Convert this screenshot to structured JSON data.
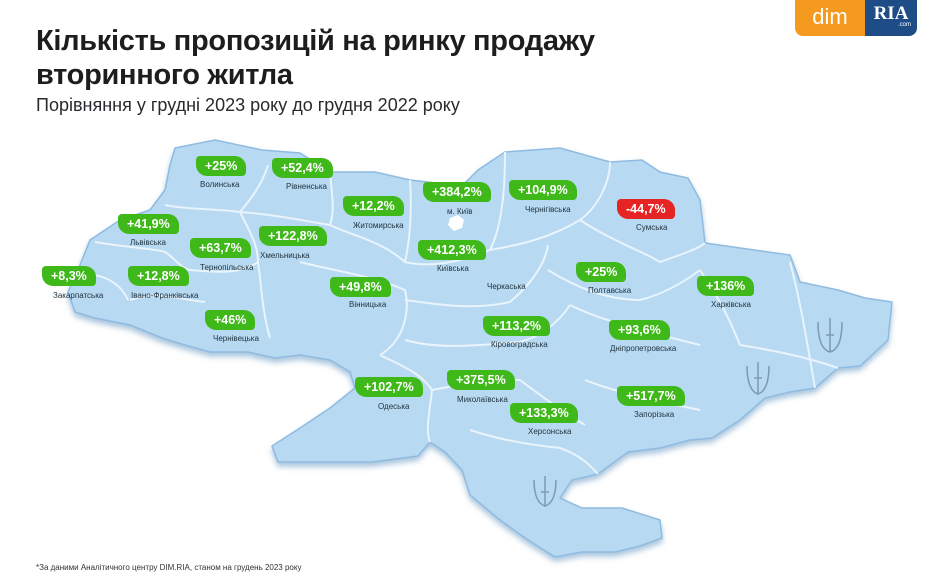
{
  "title": "Кількість пропозицій на ринку продажу вторинного житла",
  "subtitle": "Порівняння у грудні 2023 року до грудня 2022 року",
  "logo": {
    "dim": "dim",
    "ria": "RIA",
    "ria_suffix": ".com"
  },
  "footnote": "*За даними Аналітичного центру DIM.RIA, станом на грудень 2023 року",
  "colors": {
    "map_fill": "#b7d9f2",
    "map_edge": "#8fbbe0",
    "positive": "#3fb81a",
    "negative": "#e62424",
    "dim_brand": "#f39a1f",
    "ria_brand": "#1d4c86"
  },
  "regions": [
    {
      "id": "volynska",
      "name": "Волинська",
      "value": "+25%"
    },
    {
      "id": "rivnenska",
      "name": "Рівненська",
      "value": "+52,4%"
    },
    {
      "id": "lvivska",
      "name": "Львівська",
      "value": "+41,9%"
    },
    {
      "id": "ternopilska",
      "name": "Тернопільська",
      "value": "+63,7%"
    },
    {
      "id": "khmelnytska",
      "name": "Хмельницька",
      "value": "+122,8%"
    },
    {
      "id": "zhytomyrska",
      "name": "Житомирська",
      "value": "+12,2%"
    },
    {
      "id": "kyiv_city",
      "name": "м. Київ",
      "value": "+384,2%"
    },
    {
      "id": "kyivska",
      "name": "Київська",
      "value": "+412,3%"
    },
    {
      "id": "chernihivska",
      "name": "Чернігівська",
      "value": "+104,9%"
    },
    {
      "id": "sumska",
      "name": "Сумська",
      "value": "-44,7%"
    },
    {
      "id": "zakarpatska",
      "name": "Закарпатська",
      "value": "+8,3%"
    },
    {
      "id": "ivano_frankivska",
      "name": "Івано-Франківська",
      "value": "+12,8%"
    },
    {
      "id": "chernivetska",
      "name": "Чернівецька",
      "value": "+46%"
    },
    {
      "id": "vinnytska",
      "name": "Вінницька",
      "value": "+49,8%"
    },
    {
      "id": "cherkaska",
      "name": "Черкаська",
      "value": null
    },
    {
      "id": "poltavska",
      "name": "Полтавська",
      "value": "+25%"
    },
    {
      "id": "kharkivska",
      "name": "Харківська",
      "value": "+136%"
    },
    {
      "id": "kirovohradska",
      "name": "Кіровоградська",
      "value": "+113,2%"
    },
    {
      "id": "dnipropetrovska",
      "name": "Дніпропетровська",
      "value": "+93,6%"
    },
    {
      "id": "odeska",
      "name": "Одеська",
      "value": "+102,7%"
    },
    {
      "id": "mykolaivska",
      "name": "Миколаївська",
      "value": "+375,5%"
    },
    {
      "id": "khersonska",
      "name": "Херсонська",
      "value": "+133,3%"
    },
    {
      "id": "zaporizka",
      "name": "Запорізька",
      "value": "+517,7%"
    }
  ]
}
